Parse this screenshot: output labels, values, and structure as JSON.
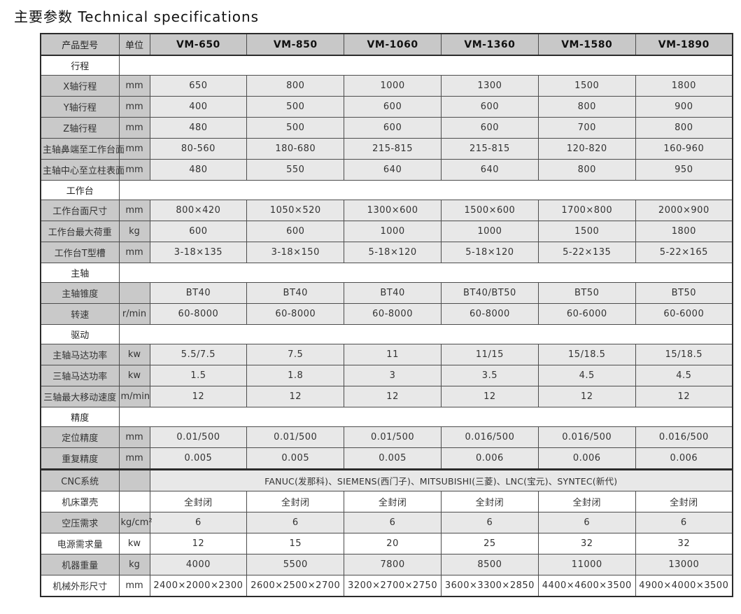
{
  "title": "主要参数 Technical specifications",
  "colors": {
    "header_bg": "#c8c8c8",
    "label_bg": "#c9c9c9",
    "value_bg": "#e8e8e8",
    "row_white": "#ffffff",
    "border": "#4d4d4d",
    "outer_border": "#2b2b2b"
  },
  "table": {
    "header": {
      "product_model": "产品型号",
      "unit": "单位",
      "models": [
        "VM-650",
        "VM-850",
        "VM-1060",
        "VM-1360",
        "VM-1580",
        "VM-1890"
      ]
    },
    "rows": [
      {
        "type": "section",
        "label": "行程"
      },
      {
        "type": "data",
        "shade": "gray",
        "label": "X轴行程",
        "unit": "mm",
        "values": [
          "650",
          "800",
          "1000",
          "1300",
          "1500",
          "1800"
        ]
      },
      {
        "type": "data",
        "shade": "gray",
        "label": "Y轴行程",
        "unit": "mm",
        "values": [
          "400",
          "500",
          "600",
          "600",
          "800",
          "900"
        ]
      },
      {
        "type": "data",
        "shade": "gray",
        "label": "Z轴行程",
        "unit": "mm",
        "values": [
          "480",
          "500",
          "600",
          "600",
          "700",
          "800"
        ]
      },
      {
        "type": "data",
        "shade": "gray",
        "label": "主轴鼻端至工作台面",
        "unit": "mm",
        "values": [
          "80-560",
          "180-680",
          "215-815",
          "215-815",
          "120-820",
          "160-960"
        ]
      },
      {
        "type": "data",
        "shade": "gray",
        "label": "主轴中心至立柱表面",
        "unit": "mm",
        "values": [
          "480",
          "550",
          "640",
          "640",
          "800",
          "950"
        ]
      },
      {
        "type": "section",
        "label": "工作台"
      },
      {
        "type": "data",
        "shade": "gray",
        "label": "工作台面尺寸",
        "unit": "mm",
        "values": [
          "800×420",
          "1050×520",
          "1300×600",
          "1500×600",
          "1700×800",
          "2000×900"
        ]
      },
      {
        "type": "data",
        "shade": "gray",
        "label": "工作台最大荷重",
        "unit": "kg",
        "values": [
          "600",
          "600",
          "1000",
          "1000",
          "1500",
          "1800"
        ]
      },
      {
        "type": "data",
        "shade": "gray",
        "label": "工作台T型槽",
        "unit": "mm",
        "values": [
          "3-18×135",
          "3-18×150",
          "5-18×120",
          "5-18×120",
          "5-22×135",
          "5-22×165"
        ]
      },
      {
        "type": "section",
        "label": "主轴"
      },
      {
        "type": "data",
        "shade": "gray",
        "label": "主轴锥度",
        "unit": "",
        "values": [
          "BT40",
          "BT40",
          "BT40",
          "BT40/BT50",
          "BT50",
          "BT50"
        ]
      },
      {
        "type": "data",
        "shade": "gray",
        "label": "转速",
        "unit": "r/min",
        "values": [
          "60-8000",
          "60-8000",
          "60-8000",
          "60-8000",
          "60-6000",
          "60-6000"
        ]
      },
      {
        "type": "section",
        "label": "驱动"
      },
      {
        "type": "data",
        "shade": "gray",
        "label": "主轴马达功率",
        "unit": "kw",
        "values": [
          "5.5/7.5",
          "7.5",
          "11",
          "11/15",
          "15/18.5",
          "15/18.5"
        ]
      },
      {
        "type": "data",
        "shade": "gray",
        "label": "三轴马达功率",
        "unit": "kw",
        "values": [
          "1.5",
          "1.8",
          "3",
          "3.5",
          "4.5",
          "4.5"
        ]
      },
      {
        "type": "data",
        "shade": "gray",
        "label": "三轴最大移动速度",
        "unit": "m/min",
        "values": [
          "12",
          "12",
          "12",
          "12",
          "12",
          "12"
        ]
      },
      {
        "type": "section",
        "label": "精度"
      },
      {
        "type": "data",
        "shade": "gray",
        "label": "定位精度",
        "unit": "mm",
        "values": [
          "0.01/500",
          "0.01/500",
          "0.01/500",
          "0.016/500",
          "0.016/500",
          "0.016/500"
        ]
      },
      {
        "type": "data",
        "shade": "gray",
        "label": "重复精度",
        "unit": "mm",
        "values": [
          "0.005",
          "0.005",
          "0.005",
          "0.006",
          "0.006",
          "0.006"
        ]
      },
      {
        "type": "merged",
        "shade": "gray",
        "thick_top": true,
        "label": "CNC系统",
        "unit": "",
        "value": "FANUC(发那科)、SIEMENS(西门子)、MITSUBISHI(三菱)、LNC(宝元)、SYNTEC(新代)"
      },
      {
        "type": "data",
        "shade": "white",
        "label": "机床罩壳",
        "unit": "",
        "values": [
          "全封闭",
          "全封闭",
          "全封闭",
          "全封闭",
          "全封闭",
          "全封闭"
        ]
      },
      {
        "type": "data",
        "shade": "gray",
        "label": "空压需求",
        "unit": "kg/cm²",
        "values": [
          "6",
          "6",
          "6",
          "6",
          "6",
          "6"
        ]
      },
      {
        "type": "data",
        "shade": "white",
        "label": "电源需求量",
        "unit": "kw",
        "values": [
          "12",
          "15",
          "20",
          "25",
          "32",
          "32"
        ]
      },
      {
        "type": "data",
        "shade": "gray",
        "label": "机器重量",
        "unit": "kg",
        "values": [
          "4000",
          "5500",
          "7800",
          "8500",
          "11000",
          "13000"
        ]
      },
      {
        "type": "data",
        "shade": "white",
        "label": "机械外形尺寸",
        "unit": "mm",
        "values": [
          "2400×2000×2300",
          "2600×2500×2700",
          "3200×2700×2750",
          "3600×3300×2850",
          "4400×4600×3500",
          "4900×4000×3500"
        ]
      }
    ]
  }
}
